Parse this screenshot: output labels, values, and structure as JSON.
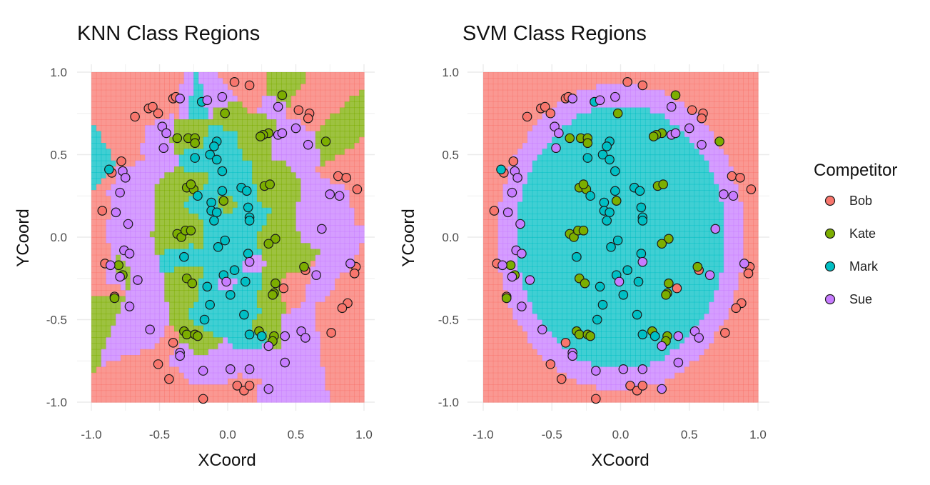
{
  "legend": {
    "title": "Competitor",
    "entries": [
      "Bob",
      "Kate",
      "Mark",
      "Sue"
    ]
  },
  "colors": {
    "Bob": "#F8766D",
    "Kate": "#7CAE00",
    "Mark": "#00BFC4",
    "Sue": "#C77CFF",
    "grid": "#ebebeb"
  },
  "chart_data": [
    {
      "type": "scatter",
      "title": "KNN Class Regions",
      "xlabel": "XCoord",
      "ylabel": "YCoord",
      "xlim": [
        -1.0,
        1.0
      ],
      "ylim": [
        -1.0,
        1.0
      ],
      "x_ticks": [
        "-1.0",
        "-0.5",
        "0.0",
        "0.5",
        "1.0"
      ],
      "y_ticks": [
        "1.0",
        "0.5",
        "0.0",
        "-0.5",
        "-1.0"
      ],
      "grid": true,
      "background": "class-region fill (K-nearest neighbours)"
    },
    {
      "type": "scatter",
      "title": "SVM Class Regions",
      "xlabel": "XCoord",
      "ylabel": "YCoord",
      "xlim": [
        -1.0,
        1.0
      ],
      "ylim": [
        -1.0,
        1.0
      ],
      "x_ticks": [
        "-1.0",
        "-0.5",
        "0.0",
        "0.5",
        "1.0"
      ],
      "y_ticks": [
        "1.0",
        "0.5",
        "0.0",
        "-0.5",
        "-1.0"
      ],
      "grid": true,
      "background": "class-region fill (elliptical SVM boundaries)"
    }
  ],
  "points": [
    {
      "x": 0.05,
      "y": 0.94,
      "c": "Bob"
    },
    {
      "x": 0.16,
      "y": 0.92,
      "c": "Bob"
    },
    {
      "x": -0.4,
      "y": 0.84,
      "c": "Bob"
    },
    {
      "x": -0.38,
      "y": 0.85,
      "c": "Bob"
    },
    {
      "x": -0.58,
      "y": 0.78,
      "c": "Bob"
    },
    {
      "x": -0.55,
      "y": 0.79,
      "c": "Bob"
    },
    {
      "x": -0.68,
      "y": 0.73,
      "c": "Bob"
    },
    {
      "x": -0.51,
      "y": 0.75,
      "c": "Bob"
    },
    {
      "x": 0.52,
      "y": 0.77,
      "c": "Bob"
    },
    {
      "x": 0.6,
      "y": 0.75,
      "c": "Bob"
    },
    {
      "x": 0.59,
      "y": 0.72,
      "c": "Bob"
    },
    {
      "x": -0.78,
      "y": 0.46,
      "c": "Bob"
    },
    {
      "x": -0.85,
      "y": 0.39,
      "c": "Bob"
    },
    {
      "x": 0.81,
      "y": 0.37,
      "c": "Bob"
    },
    {
      "x": 0.87,
      "y": 0.36,
      "c": "Bob"
    },
    {
      "x": 0.95,
      "y": 0.29,
      "c": "Bob"
    },
    {
      "x": -0.92,
      "y": 0.16,
      "c": "Bob"
    },
    {
      "x": -0.9,
      "y": -0.16,
      "c": "Bob"
    },
    {
      "x": 0.94,
      "y": -0.18,
      "c": "Bob"
    },
    {
      "x": 0.93,
      "y": -0.22,
      "c": "Bob"
    },
    {
      "x": 0.57,
      "y": -0.2,
      "c": "Bob"
    },
    {
      "x": 0.41,
      "y": -0.31,
      "c": "Bob"
    },
    {
      "x": -0.83,
      "y": -0.36,
      "c": "Bob"
    },
    {
      "x": 0.88,
      "y": -0.4,
      "c": "Bob"
    },
    {
      "x": 0.84,
      "y": -0.43,
      "c": "Bob"
    },
    {
      "x": 0.76,
      "y": -0.58,
      "c": "Bob"
    },
    {
      "x": -0.4,
      "y": -0.64,
      "c": "Bob"
    },
    {
      "x": -0.51,
      "y": -0.77,
      "c": "Bob"
    },
    {
      "x": -0.43,
      "y": -0.86,
      "c": "Bob"
    },
    {
      "x": 0.07,
      "y": -0.9,
      "c": "Bob"
    },
    {
      "x": 0.12,
      "y": -0.93,
      "c": "Bob"
    },
    {
      "x": 0.16,
      "y": -0.9,
      "c": "Bob"
    },
    {
      "x": -0.18,
      "y": -0.98,
      "c": "Bob"
    },
    {
      "x": 0.4,
      "y": 0.86,
      "c": "Kate"
    },
    {
      "x": -0.02,
      "y": 0.75,
      "c": "Kate"
    },
    {
      "x": 0.3,
      "y": 0.63,
      "c": "Kate"
    },
    {
      "x": 0.26,
      "y": 0.62,
      "c": "Kate"
    },
    {
      "x": 0.24,
      "y": 0.61,
      "c": "Kate"
    },
    {
      "x": -0.37,
      "y": 0.6,
      "c": "Kate"
    },
    {
      "x": -0.29,
      "y": 0.6,
      "c": "Kate"
    },
    {
      "x": -0.24,
      "y": 0.6,
      "c": "Kate"
    },
    {
      "x": -0.24,
      "y": 0.57,
      "c": "Kate"
    },
    {
      "x": 0.72,
      "y": 0.58,
      "c": "Kate"
    },
    {
      "x": 0.27,
      "y": 0.31,
      "c": "Kate"
    },
    {
      "x": 0.31,
      "y": 0.32,
      "c": "Kate"
    },
    {
      "x": -0.3,
      "y": 0.3,
      "c": "Kate"
    },
    {
      "x": -0.25,
      "y": 0.29,
      "c": "Kate"
    },
    {
      "x": -0.27,
      "y": 0.32,
      "c": "Kate"
    },
    {
      "x": -0.03,
      "y": 0.22,
      "c": "Kate"
    },
    {
      "x": -0.37,
      "y": 0.02,
      "c": "Kate"
    },
    {
      "x": -0.34,
      "y": 0.0,
      "c": "Kate"
    },
    {
      "x": -0.31,
      "y": 0.04,
      "c": "Kate"
    },
    {
      "x": -0.27,
      "y": 0.04,
      "c": "Kate"
    },
    {
      "x": 0.35,
      "y": -0.01,
      "c": "Kate"
    },
    {
      "x": 0.3,
      "y": -0.04,
      "c": "Kate"
    },
    {
      "x": -0.8,
      "y": -0.17,
      "c": "Kate"
    },
    {
      "x": -0.77,
      "y": -0.23,
      "c": "Kate"
    },
    {
      "x": 0.56,
      "y": -0.18,
      "c": "Kate"
    },
    {
      "x": -0.3,
      "y": -0.25,
      "c": "Kate"
    },
    {
      "x": -0.26,
      "y": -0.28,
      "c": "Kate"
    },
    {
      "x": 0.35,
      "y": -0.28,
      "c": "Kate"
    },
    {
      "x": 0.34,
      "y": -0.34,
      "c": "Kate"
    },
    {
      "x": 0.33,
      "y": -0.35,
      "c": "Kate"
    },
    {
      "x": -0.83,
      "y": -0.37,
      "c": "Kate"
    },
    {
      "x": -0.32,
      "y": -0.57,
      "c": "Kate"
    },
    {
      "x": -0.3,
      "y": -0.59,
      "c": "Kate"
    },
    {
      "x": -0.24,
      "y": -0.59,
      "c": "Kate"
    },
    {
      "x": -0.22,
      "y": -0.6,
      "c": "Kate"
    },
    {
      "x": 0.23,
      "y": -0.57,
      "c": "Kate"
    },
    {
      "x": 0.34,
      "y": -0.6,
      "c": "Kate"
    },
    {
      "x": 0.33,
      "y": -0.63,
      "c": "Kate"
    },
    {
      "x": -0.19,
      "y": 0.82,
      "c": "Mark"
    },
    {
      "x": -0.87,
      "y": 0.41,
      "c": "Mark"
    },
    {
      "x": -0.08,
      "y": 0.58,
      "c": "Mark"
    },
    {
      "x": -0.1,
      "y": 0.55,
      "c": "Mark"
    },
    {
      "x": -0.24,
      "y": 0.48,
      "c": "Mark"
    },
    {
      "x": -0.13,
      "y": 0.5,
      "c": "Mark"
    },
    {
      "x": -0.08,
      "y": 0.47,
      "c": "Mark"
    },
    {
      "x": -0.04,
      "y": 0.4,
      "c": "Mark"
    },
    {
      "x": 0.1,
      "y": 0.3,
      "c": "Mark"
    },
    {
      "x": 0.14,
      "y": 0.28,
      "c": "Mark"
    },
    {
      "x": -0.04,
      "y": 0.28,
      "c": "Mark"
    },
    {
      "x": -0.22,
      "y": 0.25,
      "c": "Mark"
    },
    {
      "x": -0.12,
      "y": 0.21,
      "c": "Mark"
    },
    {
      "x": -0.12,
      "y": 0.16,
      "c": "Mark"
    },
    {
      "x": -0.08,
      "y": 0.15,
      "c": "Mark"
    },
    {
      "x": 0.15,
      "y": 0.18,
      "c": "Mark"
    },
    {
      "x": 0.16,
      "y": 0.12,
      "c": "Mark"
    },
    {
      "x": -0.1,
      "y": 0.1,
      "c": "Mark"
    },
    {
      "x": 0.16,
      "y": 0.1,
      "c": "Mark"
    },
    {
      "x": -0.02,
      "y": -0.02,
      "c": "Mark"
    },
    {
      "x": -0.07,
      "y": -0.06,
      "c": "Mark"
    },
    {
      "x": 0.15,
      "y": -0.1,
      "c": "Mark"
    },
    {
      "x": -0.32,
      "y": -0.12,
      "c": "Mark"
    },
    {
      "x": -0.03,
      "y": -0.23,
      "c": "Mark"
    },
    {
      "x": 0.05,
      "y": -0.2,
      "c": "Mark"
    },
    {
      "x": 0.13,
      "y": -0.27,
      "c": "Mark"
    },
    {
      "x": -0.15,
      "y": -0.3,
      "c": "Mark"
    },
    {
      "x": 0.02,
      "y": -0.35,
      "c": "Mark"
    },
    {
      "x": -0.13,
      "y": -0.41,
      "c": "Mark"
    },
    {
      "x": -0.17,
      "y": -0.5,
      "c": "Mark"
    },
    {
      "x": 0.12,
      "y": -0.47,
      "c": "Mark"
    },
    {
      "x": 0.16,
      "y": -0.59,
      "c": "Mark"
    },
    {
      "x": 0.25,
      "y": -0.6,
      "c": "Mark"
    },
    {
      "x": -0.35,
      "y": 0.84,
      "c": "Sue"
    },
    {
      "x": -0.15,
      "y": 0.83,
      "c": "Sue"
    },
    {
      "x": -0.04,
      "y": 0.85,
      "c": "Sue"
    },
    {
      "x": 0.37,
      "y": 0.79,
      "c": "Sue"
    },
    {
      "x": -0.48,
      "y": 0.67,
      "c": "Sue"
    },
    {
      "x": -0.45,
      "y": 0.63,
      "c": "Sue"
    },
    {
      "x": -0.47,
      "y": 0.54,
      "c": "Sue"
    },
    {
      "x": 0.37,
      "y": 0.62,
      "c": "Sue"
    },
    {
      "x": 0.4,
      "y": 0.63,
      "c": "Sue"
    },
    {
      "x": 0.5,
      "y": 0.66,
      "c": "Sue"
    },
    {
      "x": 0.59,
      "y": 0.56,
      "c": "Sue"
    },
    {
      "x": -0.77,
      "y": 0.4,
      "c": "Sue"
    },
    {
      "x": -0.75,
      "y": 0.36,
      "c": "Sue"
    },
    {
      "x": -0.79,
      "y": 0.27,
      "c": "Sue"
    },
    {
      "x": 0.75,
      "y": 0.26,
      "c": "Sue"
    },
    {
      "x": 0.82,
      "y": 0.25,
      "c": "Sue"
    },
    {
      "x": -0.82,
      "y": 0.15,
      "c": "Sue"
    },
    {
      "x": -0.73,
      "y": 0.08,
      "c": "Sue"
    },
    {
      "x": 0.69,
      "y": 0.05,
      "c": "Sue"
    },
    {
      "x": -0.76,
      "y": -0.08,
      "c": "Sue"
    },
    {
      "x": -0.72,
      "y": -0.1,
      "c": "Sue"
    },
    {
      "x": -0.86,
      "y": -0.17,
      "c": "Sue"
    },
    {
      "x": 0.9,
      "y": -0.16,
      "c": "Sue"
    },
    {
      "x": -0.79,
      "y": -0.24,
      "c": "Sue"
    },
    {
      "x": -0.66,
      "y": -0.26,
      "c": "Sue"
    },
    {
      "x": 0.65,
      "y": -0.23,
      "c": "Sue"
    },
    {
      "x": -0.72,
      "y": -0.42,
      "c": "Sue"
    },
    {
      "x": -0.57,
      "y": -0.56,
      "c": "Sue"
    },
    {
      "x": 0.54,
      "y": -0.57,
      "c": "Sue"
    },
    {
      "x": 0.57,
      "y": -0.61,
      "c": "Sue"
    },
    {
      "x": 0.42,
      "y": -0.6,
      "c": "Sue"
    },
    {
      "x": -0.35,
      "y": -0.7,
      "c": "Sue"
    },
    {
      "x": -0.35,
      "y": -0.72,
      "c": "Sue"
    },
    {
      "x": 0.42,
      "y": -0.76,
      "c": "Sue"
    },
    {
      "x": -0.18,
      "y": -0.81,
      "c": "Sue"
    },
    {
      "x": 0.02,
      "y": -0.8,
      "c": "Sue"
    },
    {
      "x": 0.16,
      "y": -0.8,
      "c": "Sue"
    },
    {
      "x": 0.3,
      "y": -0.92,
      "c": "Sue"
    },
    {
      "x": -0.01,
      "y": -0.27,
      "c": "Sue"
    },
    {
      "x": 0.16,
      "y": -0.15,
      "c": "Sue"
    },
    {
      "x": 0.3,
      "y": -0.66,
      "c": "Sue"
    }
  ]
}
